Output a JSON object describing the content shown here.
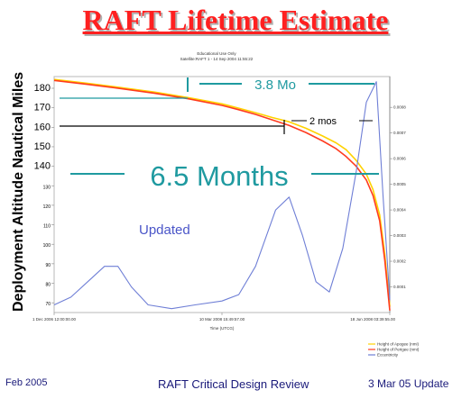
{
  "page": {
    "title": "RAFT Lifetime Estimate",
    "footer_left": "Feb 2005",
    "footer_center": "RAFT Critical Design Review",
    "footer_right": "3 Mar 05 Update"
  },
  "chart_data": {
    "type": "line",
    "header_line1": "Educational Use Only",
    "header_line2": "Satellite:RAFT 1 - 14 Sep 2004 11:55:22",
    "ylabel": "Deployment Altitude Nautical Miles",
    "xlabel": "Time (UTCG)",
    "x_ticks": [
      "1 Dec 2006 12:00:00.00",
      "10 Mar 2008 15:49:57.00",
      "18 Jun 2008 03:39:55.00"
    ],
    "y_ticks": [
      "180",
      "170",
      "160",
      "150",
      "140",
      "130",
      "120",
      "110",
      "100",
      "90",
      "80",
      "70"
    ],
    "y2_ticks": [
      "0.0008",
      "0.0007",
      "0.0006",
      "0.0005",
      "0.0004",
      "0.0003",
      "0.0002",
      "0.0001"
    ],
    "series": [
      {
        "name": "Height of Apogee (nmi)",
        "color": "#ffd200",
        "x": [
          0,
          0.1,
          0.2,
          0.3,
          0.4,
          0.5,
          0.55,
          0.6,
          0.65,
          0.7,
          0.75,
          0.8,
          0.84,
          0.87,
          0.9,
          0.93,
          0.95,
          0.97,
          0.985,
          1.0
        ],
        "y": [
          184.5,
          182.5,
          180.3,
          178,
          175.2,
          172,
          169.8,
          167.5,
          165,
          162.8,
          159.5,
          155.5,
          152,
          148.5,
          143,
          136,
          128,
          115,
          95,
          68
        ]
      },
      {
        "name": "Height of Perigee (nmi)",
        "color": "#ff3b1f",
        "x": [
          0,
          0.1,
          0.2,
          0.3,
          0.4,
          0.5,
          0.55,
          0.6,
          0.65,
          0.7,
          0.75,
          0.8,
          0.84,
          0.87,
          0.9,
          0.93,
          0.95,
          0.97,
          0.985,
          1.0
        ],
        "y": [
          184,
          182,
          179.8,
          177.4,
          174.6,
          171.2,
          169,
          166.6,
          163.8,
          160.9,
          157.3,
          153,
          149,
          145,
          140,
          133,
          125,
          112,
          92,
          66
        ]
      },
      {
        "name": "Eccentricity",
        "color": "#6f7fd6",
        "x": [
          0,
          0.05,
          0.1,
          0.15,
          0.19,
          0.23,
          0.28,
          0.35,
          0.42,
          0.5,
          0.55,
          0.6,
          0.66,
          0.7,
          0.74,
          0.78,
          0.82,
          0.86,
          0.9,
          0.93,
          0.96,
          0.98,
          1.0
        ],
        "y": [
          3e-05,
          6e-05,
          0.00012,
          0.00018,
          0.00018,
          0.0001,
          3e-05,
          1.5e-05,
          3e-05,
          4.5e-05,
          7e-05,
          0.00018,
          0.0004,
          0.00045,
          0.0003,
          0.00012,
          8e-05,
          0.00025,
          0.00055,
          0.00082,
          0.0009,
          0.00045,
          5e-05
        ]
      }
    ],
    "ylim": [
      65,
      186
    ],
    "y2lim": [
      0,
      0.00092
    ],
    "annotations": {
      "big_label": "6.5 Months",
      "mid_label": "3.8 Mo",
      "small_label": "2 mos",
      "updated_label": "Updated"
    },
    "colors": {
      "annotation_teal": "#1f9aa0",
      "updated_blue": "#4a55c8",
      "title_red": "#ff2020"
    }
  }
}
